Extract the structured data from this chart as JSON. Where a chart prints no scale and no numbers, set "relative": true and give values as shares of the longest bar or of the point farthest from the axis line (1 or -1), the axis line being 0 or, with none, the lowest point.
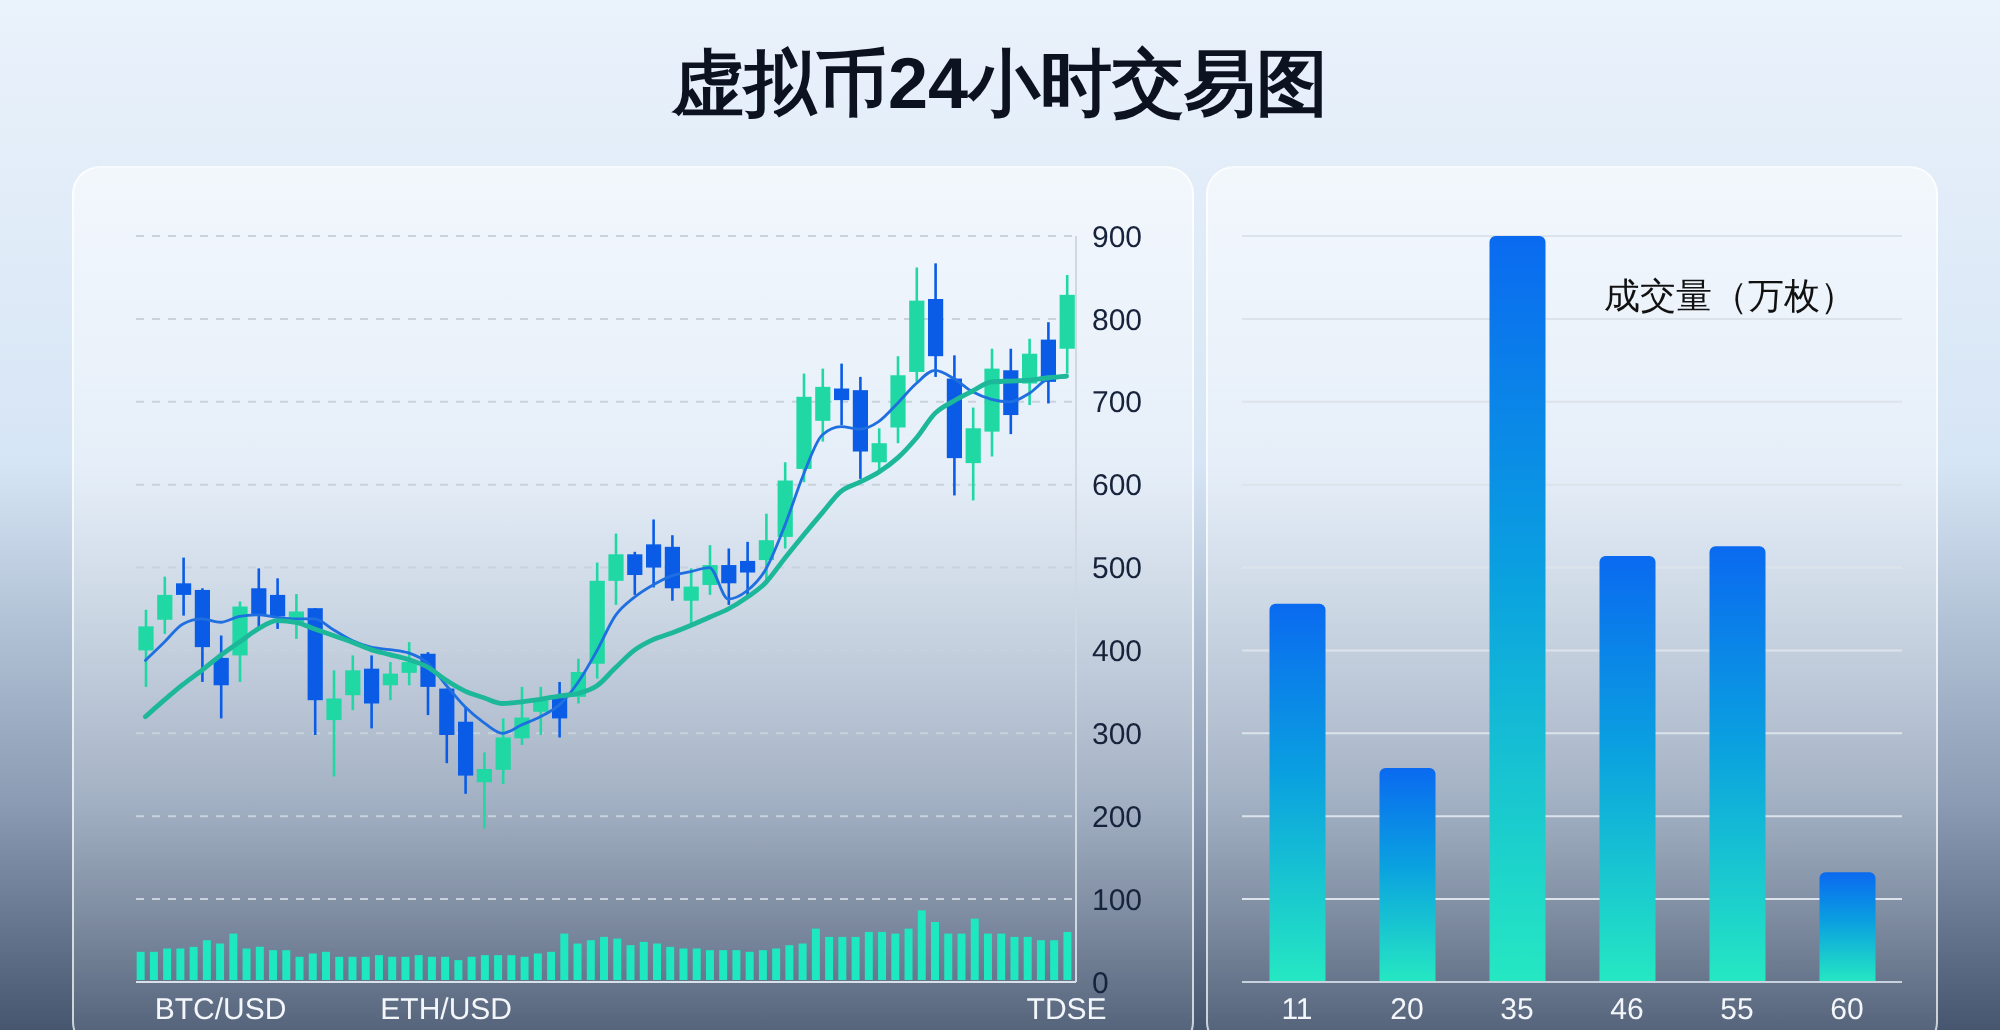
{
  "chart_data": [
    {
      "type": "candlestick",
      "title": "虚拟币24小时交易图",
      "categories": [
        null,
        null,
        null,
        null,
        "BTC/USD",
        null,
        null,
        null,
        null,
        null,
        null,
        null,
        null,
        null,
        null,
        null,
        "ETH/USD",
        null,
        null,
        null,
        null,
        null,
        null,
        null,
        null,
        null,
        null,
        null,
        null,
        null,
        null,
        null,
        null,
        null,
        null,
        null,
        null,
        null,
        null,
        null,
        null,
        null,
        null,
        null,
        null,
        null,
        null,
        null,
        null,
        "TDSE"
      ],
      "ohlc": [
        [
          400,
          449,
          356,
          429
        ],
        [
          437,
          489,
          420,
          467
        ],
        [
          481,
          512,
          442,
          467
        ],
        [
          473,
          475,
          362,
          404
        ],
        [
          391,
          418,
          318,
          358
        ],
        [
          394,
          459,
          362,
          453
        ],
        [
          475,
          499,
          426,
          442
        ],
        [
          467,
          487,
          426,
          441
        ],
        [
          432,
          468,
          414,
          447
        ],
        [
          451,
          451,
          298,
          340
        ],
        [
          316,
          376,
          248,
          342
        ],
        [
          346,
          394,
          328,
          376
        ],
        [
          378,
          394,
          306,
          336
        ],
        [
          358,
          386,
          340,
          372
        ],
        [
          373,
          410,
          358,
          386
        ],
        [
          396,
          398,
          322,
          356
        ],
        [
          354,
          354,
          264,
          298
        ],
        [
          314,
          332,
          227,
          249
        ],
        [
          241,
          277,
          185,
          257
        ],
        [
          256,
          318,
          239,
          295
        ],
        [
          294,
          356,
          286,
          319
        ],
        [
          326,
          356,
          298,
          340
        ],
        [
          344,
          362,
          295,
          318
        ],
        [
          344,
          390,
          336,
          374
        ],
        [
          384,
          506,
          366,
          484
        ],
        [
          484,
          541,
          455,
          516
        ],
        [
          516,
          519,
          467,
          491
        ],
        [
          528,
          558,
          476,
          500
        ],
        [
          525,
          539,
          460,
          475
        ],
        [
          460,
          499,
          430,
          477
        ],
        [
          479,
          527,
          467,
          503
        ],
        [
          503,
          523,
          455,
          481
        ],
        [
          508,
          531,
          463,
          494
        ],
        [
          509,
          565,
          484,
          533
        ],
        [
          537,
          627,
          523,
          605
        ],
        [
          619,
          734,
          603,
          706
        ],
        [
          677,
          740,
          652,
          718
        ],
        [
          716,
          746,
          672,
          702
        ],
        [
          714,
          730,
          607,
          640
        ],
        [
          627,
          668,
          613,
          650
        ],
        [
          669,
          755,
          650,
          732
        ],
        [
          736,
          862,
          724,
          822
        ],
        [
          824,
          867,
          730,
          755
        ],
        [
          728,
          756,
          587,
          632
        ],
        [
          626,
          693,
          581,
          668
        ],
        [
          664,
          764,
          634,
          740
        ],
        [
          738,
          764,
          661,
          684
        ],
        [
          722,
          776,
          696,
          758
        ],
        [
          775,
          796,
          698,
          724
        ],
        [
          764,
          853,
          734,
          829
        ]
      ],
      "colors": [
        "#1fd8a4",
        "#1fd8a4",
        "#0a5ce6",
        "#0a5ce6",
        "#0a5ce6",
        "#1fd8a4",
        "#0a5ce6",
        "#0a5ce6",
        "#1fd8a4",
        "#0a5ce6",
        "#1fd8a4",
        "#1fd8a4",
        "#0a5ce6",
        "#1fd8a4",
        "#1fd8a4",
        "#0a5ce6",
        "#0a5ce6",
        "#0a5ce6",
        "#1fd8a4",
        "#1fd8a4",
        "#1fd8a4",
        "#1fd8a4",
        "#0a5ce6",
        "#1fd8a4",
        "#1fd8a4",
        "#1fd8a4",
        "#0a5ce6",
        "#0a5ce6",
        "#0a5ce6",
        "#1fd8a4",
        "#1fd8a4",
        "#0a5ce6",
        "#0a5ce6",
        "#1fd8a4",
        "#1fd8a4",
        "#1fd8a4",
        "#1fd8a4",
        "#0a5ce6",
        "#0a5ce6",
        "#1fd8a4",
        "#1fd8a4",
        "#1fd8a4",
        "#0a5ce6",
        "#0a5ce6",
        "#1fd8a4",
        "#1fd8a4",
        "#0a5ce6",
        "#1fd8a4",
        "#0a5ce6",
        "#1fd8a4"
      ],
      "series": [
        {
          "type": "line",
          "color": "#1f6fe0",
          "values": [
            388,
            410,
            432,
            438,
            434,
            441,
            443,
            440,
            438,
            438,
            425,
            412,
            404,
            401,
            397,
            385,
            358,
            332,
            313,
            300,
            310,
            320,
            334,
            361,
            399,
            442,
            464,
            479,
            490,
            495,
            500,
            462,
            472,
            498,
            550,
            612,
            660,
            670,
            667,
            676,
            698,
            722,
            738,
            728,
            712,
            703,
            700,
            710,
            727,
            730
          ]
        },
        {
          "type": "line",
          "color": "#1db89a",
          "values": [
            320,
            340,
            359,
            376,
            394,
            410,
            426,
            436,
            434,
            426,
            418,
            410,
            401,
            395,
            389,
            380,
            364,
            351,
            343,
            336,
            338,
            341,
            345,
            348,
            357,
            379,
            400,
            413,
            421,
            430,
            440,
            450,
            464,
            482,
            511,
            539,
            566,
            592,
            603,
            615,
            632,
            656,
            686,
            701,
            713,
            724,
            725,
            726,
            729,
            731
          ]
        }
      ],
      "ylim": [
        0,
        900
      ],
      "yticks": [
        0,
        100,
        200,
        300,
        400,
        500,
        600,
        700,
        800,
        900
      ],
      "grid": "y"
    },
    {
      "type": "bar",
      "categories": [
        null,
        null,
        null,
        null,
        null,
        null,
        null,
        null,
        null,
        null,
        null,
        null,
        null,
        null,
        null,
        null,
        null,
        null,
        null,
        null,
        null,
        null,
        null,
        null,
        null,
        null,
        null,
        null,
        null,
        null,
        null,
        null,
        null,
        null,
        null,
        null,
        null,
        null,
        null,
        null,
        null,
        null,
        null,
        null,
        null,
        null,
        null,
        null,
        null,
        null,
        null,
        null,
        null,
        null,
        null,
        null,
        null,
        null,
        null,
        null,
        null,
        null,
        null,
        null,
        null,
        null,
        null,
        null,
        null,
        null,
        null
      ],
      "values": [
        34,
        34,
        38,
        38,
        40,
        48,
        44,
        56,
        38,
        40,
        36,
        36,
        28,
        32,
        34,
        28,
        28,
        28,
        30,
        28,
        28,
        30,
        28,
        28,
        24,
        28,
        30,
        30,
        30,
        28,
        32,
        34,
        56,
        44,
        48,
        52,
        50,
        42,
        46,
        44,
        40,
        38,
        38,
        36,
        36,
        36,
        34,
        36,
        38,
        42,
        44,
        62,
        52,
        52,
        52,
        58,
        58,
        56,
        62,
        84,
        70,
        56,
        56,
        74,
        56,
        56,
        52,
        52,
        48,
        48,
        58
      ],
      "color": "#1ee8c0",
      "ylim": [
        0,
        900
      ],
      "tick_labels": false
    },
    {
      "type": "bar",
      "title": "成交量（万枚）",
      "categories": [
        "11",
        "20",
        "35",
        "46",
        "55",
        "60"
      ],
      "values": [
        0.507,
        0.287,
        1,
        0.571,
        0.584,
        0.147
      ],
      "color": "#0a6af0",
      "relative": true,
      "grid": "y"
    }
  ]
}
